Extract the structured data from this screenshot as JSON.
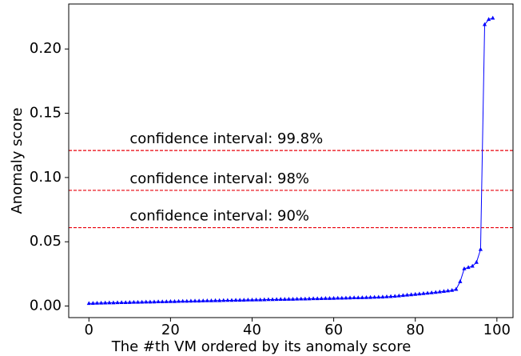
{
  "chart_data": {
    "type": "line",
    "xlabel": "The #th VM ordered by its anomaly score",
    "ylabel": "Anomaly score",
    "x": [
      0,
      1,
      2,
      3,
      4,
      5,
      6,
      7,
      8,
      9,
      10,
      11,
      12,
      13,
      14,
      15,
      16,
      17,
      18,
      19,
      20,
      21,
      22,
      23,
      24,
      25,
      26,
      27,
      28,
      29,
      30,
      31,
      32,
      33,
      34,
      35,
      36,
      37,
      38,
      39,
      40,
      41,
      42,
      43,
      44,
      45,
      46,
      47,
      48,
      49,
      50,
      51,
      52,
      53,
      54,
      55,
      56,
      57,
      58,
      59,
      60,
      61,
      62,
      63,
      64,
      65,
      66,
      67,
      68,
      69,
      70,
      71,
      72,
      73,
      74,
      75,
      76,
      77,
      78,
      79,
      80,
      81,
      82,
      83,
      84,
      85,
      86,
      87,
      88,
      89,
      90,
      91,
      92,
      93,
      94,
      95,
      96,
      97,
      98,
      99
    ],
    "series": [
      {
        "color": "#0000ff",
        "values": [
          0.002,
          0.0021,
          0.0022,
          0.0023,
          0.0024,
          0.0025,
          0.0025,
          0.0026,
          0.0027,
          0.0027,
          0.0028,
          0.0029,
          0.0029,
          0.003,
          0.0031,
          0.0031,
          0.0032,
          0.0033,
          0.0033,
          0.0034,
          0.0035,
          0.0035,
          0.0036,
          0.0037,
          0.0037,
          0.0038,
          0.0039,
          0.0039,
          0.004,
          0.0041,
          0.0041,
          0.0042,
          0.0042,
          0.0043,
          0.0044,
          0.0044,
          0.0045,
          0.0045,
          0.0046,
          0.0047,
          0.0047,
          0.0048,
          0.0048,
          0.0049,
          0.005,
          0.005,
          0.0051,
          0.0052,
          0.0052,
          0.0053,
          0.0053,
          0.0054,
          0.0055,
          0.0055,
          0.0056,
          0.0057,
          0.0057,
          0.0058,
          0.0059,
          0.0059,
          0.006,
          0.0061,
          0.0061,
          0.0062,
          0.0063,
          0.0064,
          0.0064,
          0.0065,
          0.0066,
          0.0067,
          0.0068,
          0.0069,
          0.007,
          0.0072,
          0.0074,
          0.0076,
          0.0079,
          0.0082,
          0.0085,
          0.0088,
          0.0091,
          0.0094,
          0.0097,
          0.01,
          0.0103,
          0.0106,
          0.011,
          0.0114,
          0.0118,
          0.0122,
          0.013,
          0.019,
          0.029,
          0.03,
          0.031,
          0.034,
          0.044,
          0.219,
          0.223,
          0.224
        ]
      }
    ],
    "reference_lines": [
      {
        "value": 0.121,
        "label": "confidence interval: 99.8%",
        "color": "#e8000b"
      },
      {
        "value": 0.09,
        "label": "confidence interval: 98%",
        "color": "#e8000b"
      },
      {
        "value": 0.061,
        "label": "confidence interval: 90%",
        "color": "#e8000b"
      }
    ],
    "xlim": [
      -4.95,
      103.95
    ],
    "xticks": [
      0,
      20,
      40,
      60,
      80,
      100
    ],
    "ylim": [
      -0.009,
      0.235
    ],
    "yticks": [
      {
        "value": 0,
        "label": "0.00"
      },
      {
        "value": 0.05,
        "label": "0.05"
      },
      {
        "value": 0.1,
        "label": "0.10"
      },
      {
        "value": 0.15,
        "label": "0.15"
      },
      {
        "value": 0.2,
        "label": "0.20"
      }
    ],
    "grid": false
  }
}
